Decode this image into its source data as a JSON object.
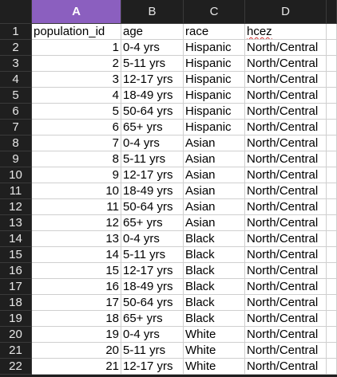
{
  "columns": [
    "A",
    "B",
    "C",
    "D"
  ],
  "active_column": "A",
  "rows": [
    {
      "n": "1",
      "a": "population_id",
      "b": "age",
      "c": "race",
      "d": "hcez"
    },
    {
      "n": "2",
      "a": "1",
      "b": "0-4 yrs",
      "c": "Hispanic",
      "d": "North/Central"
    },
    {
      "n": "3",
      "a": "2",
      "b": "5-11 yrs",
      "c": "Hispanic",
      "d": "North/Central"
    },
    {
      "n": "4",
      "a": "3",
      "b": "12-17 yrs",
      "c": "Hispanic",
      "d": "North/Central"
    },
    {
      "n": "5",
      "a": "4",
      "b": "18-49 yrs",
      "c": "Hispanic",
      "d": "North/Central"
    },
    {
      "n": "6",
      "a": "5",
      "b": "50-64 yrs",
      "c": "Hispanic",
      "d": "North/Central"
    },
    {
      "n": "7",
      "a": "6",
      "b": "65+ yrs",
      "c": "Hispanic",
      "d": "North/Central"
    },
    {
      "n": "8",
      "a": "7",
      "b": "0-4 yrs",
      "c": "Asian",
      "d": "North/Central"
    },
    {
      "n": "9",
      "a": "8",
      "b": "5-11 yrs",
      "c": "Asian",
      "d": "North/Central"
    },
    {
      "n": "10",
      "a": "9",
      "b": "12-17 yrs",
      "c": "Asian",
      "d": "North/Central"
    },
    {
      "n": "11",
      "a": "10",
      "b": "18-49 yrs",
      "c": "Asian",
      "d": "North/Central"
    },
    {
      "n": "12",
      "a": "11",
      "b": "50-64 yrs",
      "c": "Asian",
      "d": "North/Central"
    },
    {
      "n": "13",
      "a": "12",
      "b": "65+ yrs",
      "c": "Asian",
      "d": "North/Central"
    },
    {
      "n": "14",
      "a": "13",
      "b": "0-4 yrs",
      "c": "Black",
      "d": "North/Central"
    },
    {
      "n": "15",
      "a": "14",
      "b": "5-11 yrs",
      "c": "Black",
      "d": "North/Central"
    },
    {
      "n": "16",
      "a": "15",
      "b": "12-17 yrs",
      "c": "Black",
      "d": "North/Central"
    },
    {
      "n": "17",
      "a": "16",
      "b": "18-49 yrs",
      "c": "Black",
      "d": "North/Central"
    },
    {
      "n": "18",
      "a": "17",
      "b": "50-64 yrs",
      "c": "Black",
      "d": "North/Central"
    },
    {
      "n": "19",
      "a": "18",
      "b": "65+ yrs",
      "c": "Black",
      "d": "North/Central"
    },
    {
      "n": "20",
      "a": "19",
      "b": "0-4 yrs",
      "c": "White",
      "d": "North/Central"
    },
    {
      "n": "21",
      "a": "20",
      "b": "5-11 yrs",
      "c": "White",
      "d": "North/Central"
    },
    {
      "n": "22",
      "a": "21",
      "b": "12-17 yrs",
      "c": "White",
      "d": "North/Central"
    }
  ],
  "colors": {
    "header_bg": "#1f1f1f",
    "active_header": "#8b5fbf",
    "gridline": "#cfcfcf"
  }
}
